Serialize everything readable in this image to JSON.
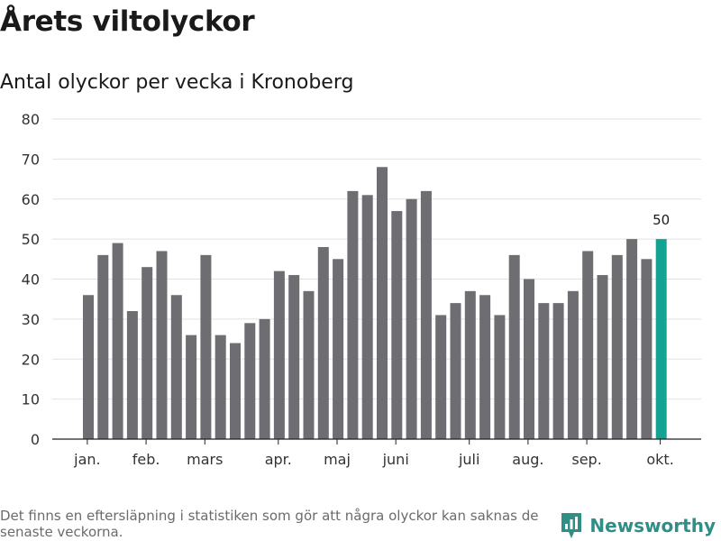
{
  "header": {
    "title": "Årets viltolyckor",
    "subtitle": "Antal olyckor per vecka i Kronoberg"
  },
  "footer": {
    "note": "Det finns en eftersläpning i statistiken som gör att några olyckor kan saknas de senaste veckorna.",
    "brand": "Newsworthy"
  },
  "colors": {
    "bar": "#6e6d72",
    "highlight": "#14a293",
    "grid": "#e2e2e2",
    "axis": "#222222",
    "brand": "#2f8f86"
  },
  "chart_data": {
    "type": "bar",
    "ylim": [
      0,
      80
    ],
    "yticks": [
      0,
      10,
      20,
      30,
      40,
      50,
      60,
      70,
      80
    ],
    "grid": true,
    "values": [
      36,
      46,
      49,
      32,
      43,
      47,
      36,
      26,
      46,
      26,
      24,
      29,
      30,
      42,
      41,
      37,
      48,
      45,
      62,
      61,
      68,
      57,
      60,
      62,
      31,
      34,
      37,
      36,
      31,
      46,
      40,
      34,
      34,
      37,
      47,
      41,
      46,
      50,
      45,
      50
    ],
    "highlight_index": 39,
    "highlight_label": "50",
    "month_ticks": [
      {
        "label": "jan.",
        "bar_index": 0.3
      },
      {
        "label": "feb.",
        "bar_index": 4.3
      },
      {
        "label": "mars",
        "bar_index": 8.3
      },
      {
        "label": "apr.",
        "bar_index": 13.3
      },
      {
        "label": "maj",
        "bar_index": 17.3
      },
      {
        "label": "juni",
        "bar_index": 21.3
      },
      {
        "label": "juli",
        "bar_index": 26.3
      },
      {
        "label": "aug.",
        "bar_index": 30.3
      },
      {
        "label": "sep.",
        "bar_index": 34.3
      },
      {
        "label": "okt.",
        "bar_index": 39.3
      }
    ]
  }
}
